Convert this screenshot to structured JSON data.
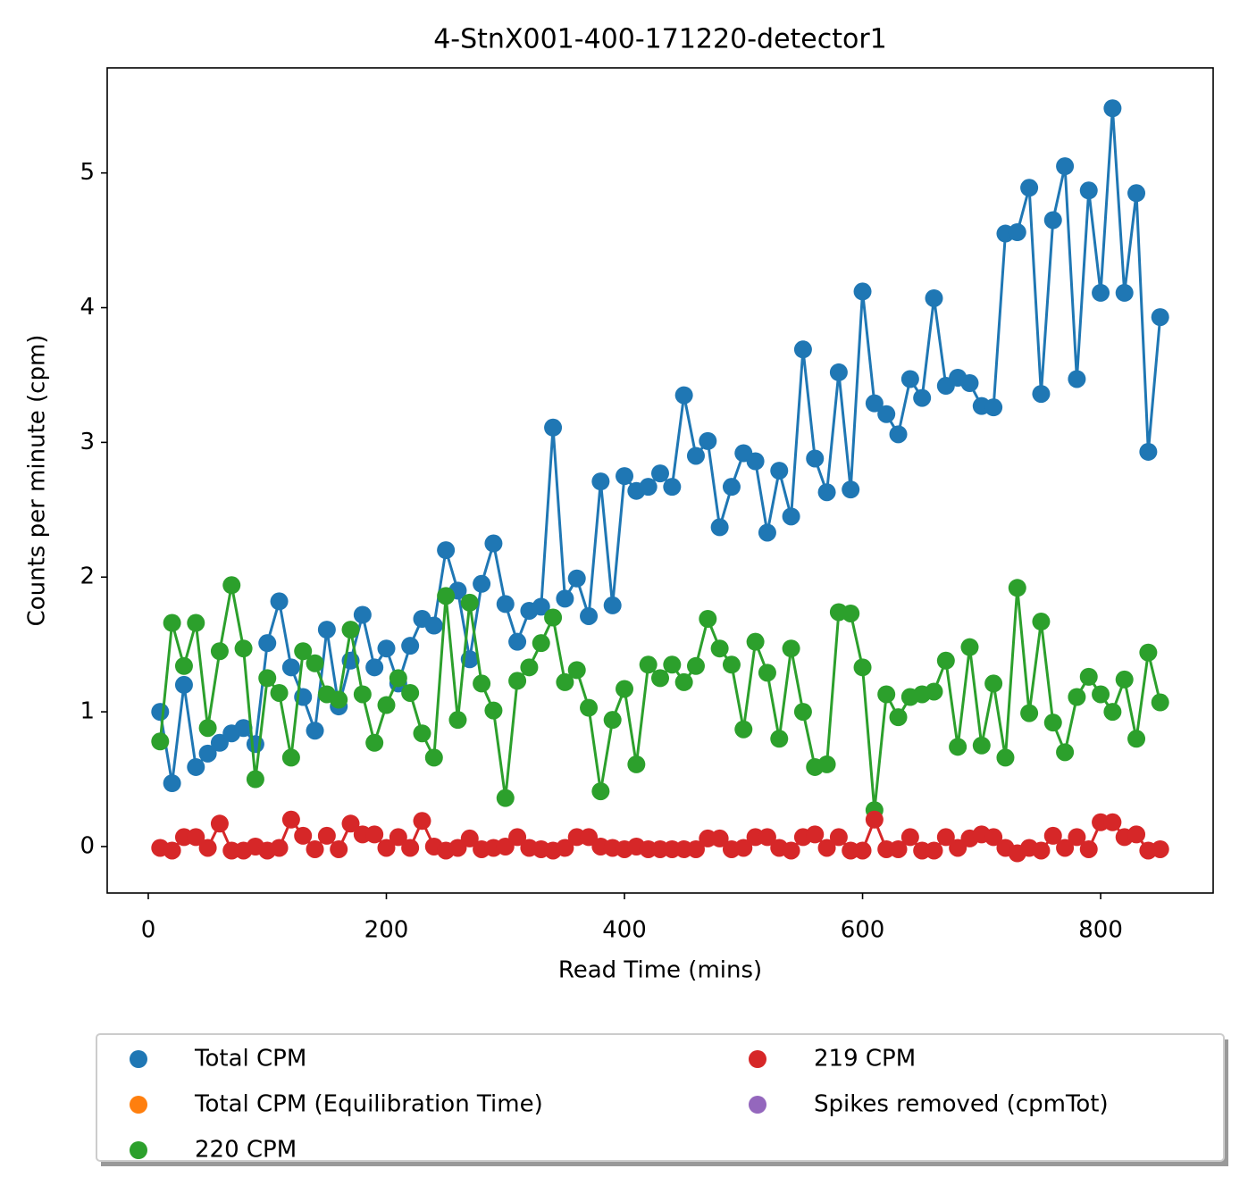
{
  "chart_data": {
    "type": "line",
    "title": "4-StnX001-400-171220-detector1",
    "x_label": "Read Time (mins)",
    "y_label": "Counts per minute (cpm)",
    "x": [
      10,
      20,
      30,
      40,
      50,
      60,
      70,
      80,
      90,
      100,
      110,
      120,
      130,
      140,
      150,
      160,
      170,
      180,
      190,
      200,
      210,
      220,
      230,
      240,
      250,
      260,
      270,
      280,
      290,
      300,
      310,
      320,
      330,
      340,
      350,
      360,
      370,
      380,
      390,
      400,
      410,
      420,
      430,
      440,
      450,
      460,
      470,
      480,
      490,
      500,
      510,
      520,
      530,
      540,
      550,
      560,
      570,
      580,
      590,
      600,
      610,
      620,
      630,
      640,
      650,
      660,
      670,
      680,
      690,
      700,
      710,
      720,
      730,
      740,
      750,
      760,
      770,
      780,
      790,
      800,
      810,
      820,
      830,
      840,
      850
    ],
    "series": [
      {
        "name": "Total CPM",
        "color": "#1f77b4",
        "values": [
          1.0,
          0.47,
          1.2,
          0.59,
          0.69,
          0.77,
          0.84,
          0.88,
          0.76,
          1.51,
          1.82,
          1.33,
          1.11,
          0.86,
          1.61,
          1.04,
          1.38,
          1.72,
          1.33,
          1.47,
          1.21,
          1.49,
          1.69,
          1.64,
          2.2,
          1.9,
          1.39,
          1.95,
          2.25,
          1.8,
          1.52,
          1.75,
          1.78,
          3.11,
          1.84,
          1.99,
          1.71,
          2.71,
          1.79,
          2.75,
          2.64,
          2.67,
          2.77,
          2.67,
          3.35,
          2.9,
          3.01,
          2.37,
          2.67,
          2.92,
          2.86,
          2.33,
          2.79,
          2.45,
          3.69,
          2.88,
          2.63,
          3.52,
          2.65,
          4.12,
          3.29,
          3.21,
          3.06,
          3.47,
          3.33,
          4.07,
          3.42,
          3.48,
          3.44,
          3.27,
          3.26,
          4.55,
          4.56,
          4.89,
          3.36,
          4.65,
          5.05,
          3.47,
          4.87,
          4.11,
          5.48,
          4.11,
          4.85,
          2.93,
          3.93
        ]
      },
      {
        "name": "Total CPM (Equilibration Time)",
        "color": "#ff7f0e",
        "values": [
          null,
          null,
          null,
          null,
          null,
          null,
          null,
          null,
          null,
          null,
          null,
          null,
          null,
          null,
          null,
          null,
          null,
          null,
          null,
          null,
          null,
          null,
          null,
          null,
          null,
          null,
          null,
          null,
          null,
          null,
          null,
          null,
          null,
          null,
          null,
          null,
          null,
          null,
          null,
          null,
          null,
          null,
          null,
          null,
          null,
          null,
          null,
          null,
          null,
          null,
          null,
          null,
          null,
          null,
          null,
          null,
          null,
          null,
          null,
          null,
          null,
          null,
          null,
          null,
          null,
          null,
          null,
          null,
          null,
          null,
          null,
          null,
          null,
          null,
          null,
          null,
          null,
          null,
          null,
          null,
          null,
          null,
          null,
          null,
          null
        ]
      },
      {
        "name": "220 CPM",
        "color": "#2ca02c",
        "values": [
          0.78,
          1.66,
          1.34,
          1.66,
          0.88,
          1.45,
          1.94,
          1.47,
          0.5,
          1.25,
          1.14,
          0.66,
          1.45,
          1.36,
          1.13,
          1.09,
          1.61,
          1.13,
          0.77,
          1.05,
          1.25,
          1.14,
          0.84,
          0.66,
          1.86,
          0.94,
          1.81,
          1.21,
          1.01,
          0.36,
          1.23,
          1.33,
          1.51,
          1.7,
          1.22,
          1.31,
          1.03,
          0.41,
          0.94,
          1.17,
          0.61,
          1.35,
          1.25,
          1.35,
          1.22,
          1.34,
          1.69,
          1.47,
          1.35,
          0.87,
          1.52,
          1.29,
          0.8,
          1.47,
          1.0,
          0.59,
          0.61,
          1.74,
          1.73,
          1.33,
          0.27,
          1.13,
          0.96,
          1.11,
          1.13,
          1.15,
          1.38,
          0.74,
          1.48,
          0.75,
          1.21,
          0.66,
          1.92,
          0.99,
          1.67,
          0.92,
          0.7,
          1.11,
          1.26,
          1.13,
          1.0,
          1.24,
          0.8,
          1.44,
          1.07
        ]
      },
      {
        "name": "219 CPM",
        "color": "#d62728",
        "values": [
          -0.01,
          -0.03,
          0.07,
          0.07,
          -0.01,
          0.17,
          -0.03,
          -0.03,
          0.0,
          -0.03,
          -0.01,
          0.2,
          0.08,
          -0.02,
          0.08,
          -0.02,
          0.17,
          0.09,
          0.09,
          -0.01,
          0.07,
          -0.01,
          0.19,
          0.0,
          -0.03,
          -0.01,
          0.06,
          -0.02,
          -0.01,
          0.0,
          0.07,
          -0.01,
          -0.02,
          -0.03,
          -0.01,
          0.07,
          0.07,
          0.0,
          -0.01,
          -0.02,
          0.0,
          -0.02,
          -0.02,
          -0.02,
          -0.02,
          -0.02,
          0.06,
          0.06,
          -0.02,
          -0.01,
          0.07,
          0.07,
          -0.01,
          -0.03,
          0.07,
          0.09,
          -0.01,
          0.07,
          -0.03,
          -0.03,
          0.2,
          -0.02,
          -0.02,
          0.07,
          -0.03,
          -0.03,
          0.07,
          -0.01,
          0.06,
          0.09,
          0.07,
          -0.01,
          -0.05,
          -0.01,
          -0.03,
          0.08,
          -0.01,
          0.07,
          -0.02,
          0.18,
          0.18,
          0.07,
          0.09,
          -0.03,
          -0.02
        ]
      },
      {
        "name": "Spikes removed (cpmTot)",
        "color": "#9467bd",
        "values": [
          null,
          null,
          null,
          null,
          null,
          null,
          null,
          null,
          null,
          null,
          null,
          null,
          null,
          null,
          null,
          null,
          null,
          null,
          null,
          null,
          null,
          null,
          null,
          null,
          null,
          null,
          null,
          null,
          null,
          null,
          null,
          null,
          null,
          null,
          null,
          null,
          null,
          null,
          null,
          null,
          null,
          null,
          null,
          null,
          null,
          null,
          null,
          null,
          null,
          null,
          null,
          null,
          null,
          null,
          null,
          null,
          null,
          null,
          null,
          null,
          null,
          null,
          null,
          null,
          null,
          null,
          null,
          null,
          null,
          null,
          null,
          null,
          null,
          null,
          null,
          null,
          null,
          null,
          null,
          null,
          null,
          null,
          null,
          null,
          null
        ]
      }
    ],
    "xlim": [
      -34.5,
      894.5
    ],
    "xticks": [
      0,
      200,
      400,
      600,
      800
    ],
    "ylim": [
      -0.345,
      5.78
    ],
    "yticks": [
      0,
      1,
      2,
      3,
      4,
      5
    ],
    "legend": "lower center"
  }
}
